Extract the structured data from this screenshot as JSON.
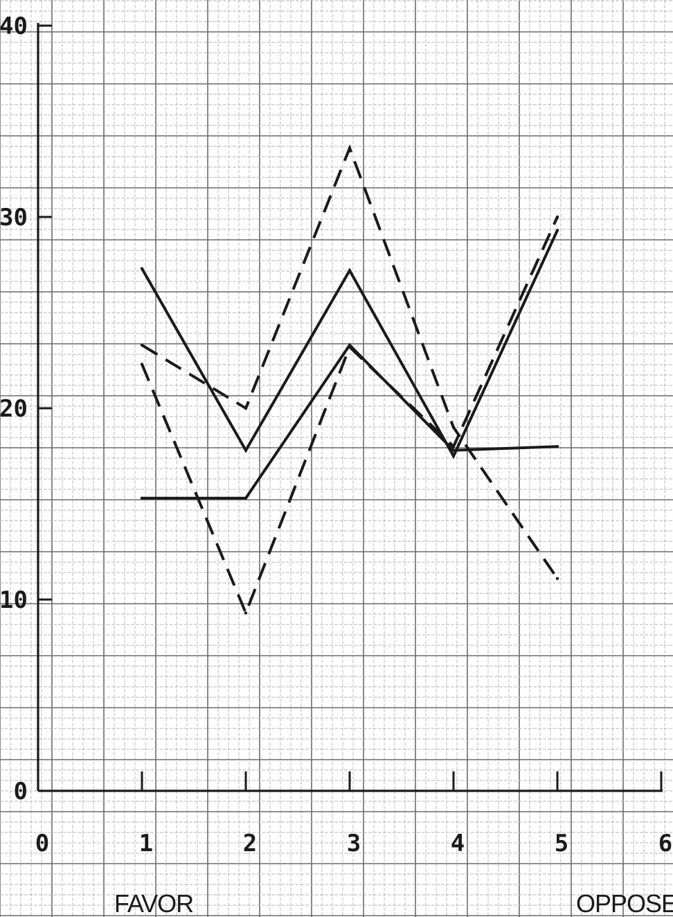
{
  "chart_data": {
    "type": "line",
    "title": "",
    "x": [
      1,
      2,
      3,
      4,
      5
    ],
    "xlim": [
      0,
      6
    ],
    "ylim": [
      0,
      40
    ],
    "x_ticks": [
      "0",
      "1",
      "2",
      "3",
      "4",
      "5",
      "6"
    ],
    "y_ticks": [
      "0",
      "10",
      "20",
      "30",
      "40"
    ],
    "x_end_labels": {
      "left": "FAVOR",
      "right": "OPPOSE"
    },
    "grid": true,
    "series": [
      {
        "style": "solid",
        "values": [
          27.3,
          17.8,
          27.2,
          17.5,
          29.3
        ]
      },
      {
        "style": "solid",
        "values": [
          15.3,
          15.3,
          23.3,
          17.8,
          18.0
        ]
      },
      {
        "style": "dashed",
        "values": [
          23.3,
          20.0,
          33.6,
          19.0,
          11.1
        ]
      },
      {
        "style": "dashed",
        "values": [
          22.3,
          9.3,
          23.2,
          18.0,
          30.0
        ]
      }
    ],
    "colors": {
      "ink": "#1a1a1a",
      "grid_major": "#6a6a6a",
      "grid_minor": "#b5b5b5"
    }
  }
}
